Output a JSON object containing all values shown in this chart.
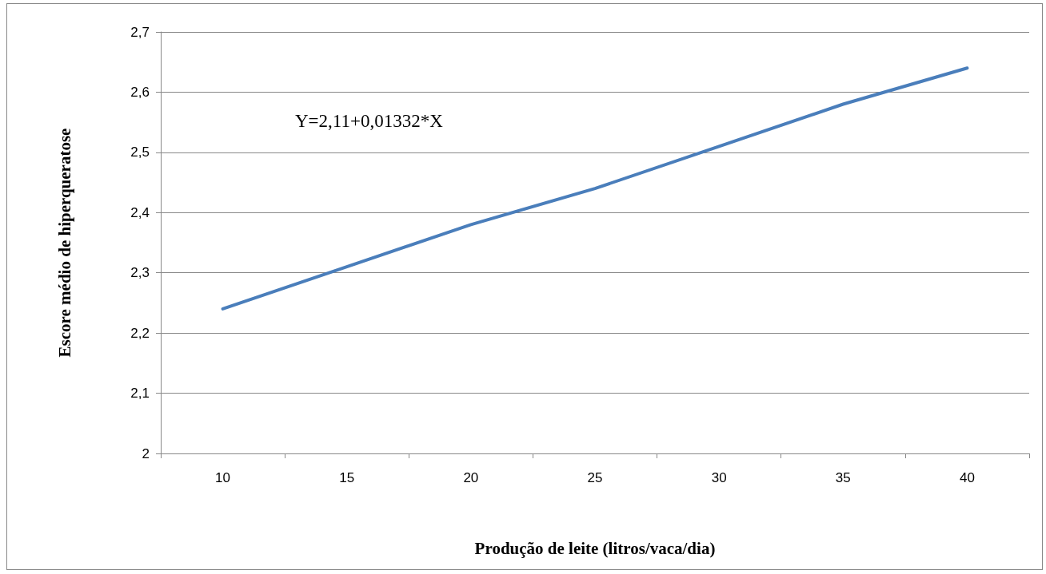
{
  "chart_data": {
    "type": "line",
    "xlabel": "Produção de leite (litros/vaca/dia)",
    "ylabel": "Escore médio de hiperqueratose",
    "categories": [
      "10",
      "15",
      "20",
      "25",
      "30",
      "35",
      "40"
    ],
    "series": [
      {
        "color": "#4a7ebb",
        "values": [
          2.24,
          2.31,
          2.38,
          2.44,
          2.51,
          2.58,
          2.64
        ]
      }
    ],
    "ylim": [
      2,
      2.7
    ],
    "yticks": [
      2,
      {
        "value": 2.1,
        "label": "2,1"
      },
      {
        "value": 2.2,
        "label": "2,2"
      },
      {
        "value": 2.3,
        "label": "2,3"
      },
      {
        "value": 2.4,
        "label": "2,4"
      },
      {
        "value": 2.5,
        "label": "2,5"
      },
      {
        "value": 2.6,
        "label": "2,6"
      },
      {
        "value": 2.7,
        "label": "2,7"
      }
    ],
    "grid": "y",
    "marker": "none",
    "line_style": "solid",
    "annotations": [
      "Y=2,11+0,01332*X"
    ]
  }
}
